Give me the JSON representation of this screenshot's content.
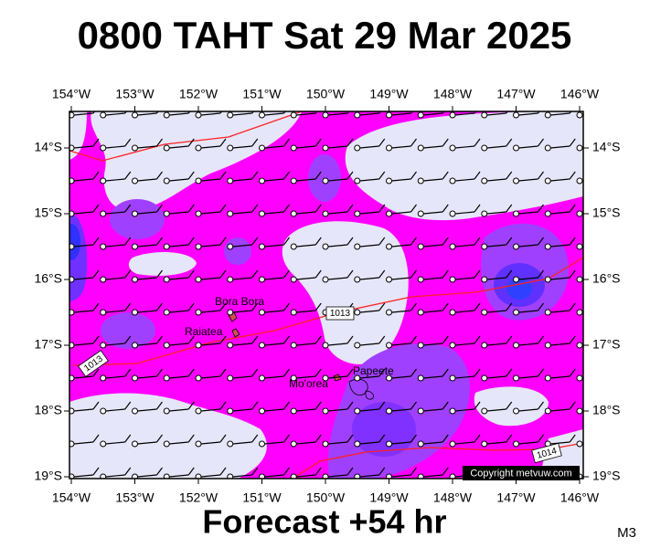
{
  "title": "0800 TAHT Sat 29 Mar 2025",
  "footer": "Forecast +54 hr",
  "model_label": "M3",
  "longitude_labels": [
    "154°W",
    "153°W",
    "152°W",
    "151°W",
    "150°W",
    "149°W",
    "148°W",
    "147°W",
    "146°W"
  ],
  "latitude_labels": [
    "14°S",
    "15°S",
    "16°S",
    "17°S",
    "18°S",
    "19°S"
  ],
  "places": [
    "Bora Bora",
    "Raiatea",
    "Mo'orea",
    "Papeete"
  ],
  "isobar_labels": [
    "1013",
    "1013",
    "1014"
  ],
  "copyright": "Copyright metvuw.com"
}
